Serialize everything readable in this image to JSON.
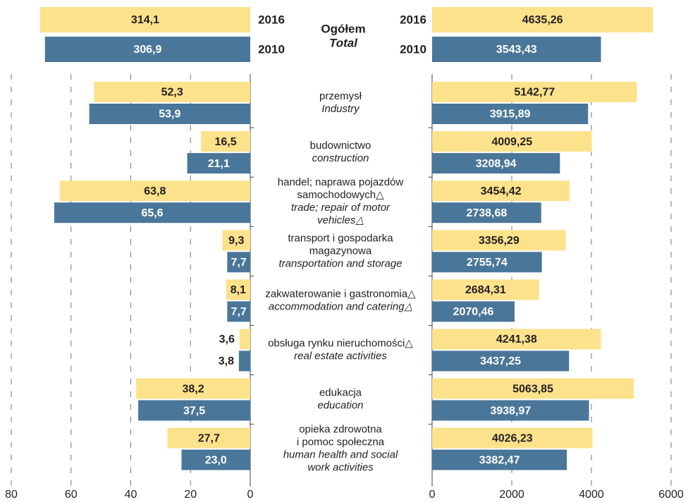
{
  "chart_data": {
    "type": "butterfly",
    "total_title": [
      "Ogółem",
      "Total"
    ],
    "categories": [
      {
        "pl": [
          "przemysł"
        ],
        "en": [
          "Industry"
        ]
      },
      {
        "pl": [
          "budownictwo"
        ],
        "en": [
          "construction"
        ]
      },
      {
        "pl": [
          "handel; naprawa pojazdów",
          "samochodowych△"
        ],
        "en": [
          "trade; repair of motor",
          "vehicles△"
        ]
      },
      {
        "pl": [
          "transport i gospodarka",
          "magazynowa"
        ],
        "en": [
          "transportation and storage"
        ]
      },
      {
        "pl": [
          "zakwaterowanie i gastronomia△"
        ],
        "en": [
          "accommodation and catering△"
        ]
      },
      {
        "pl": [
          "obsługa rynku nieruchomości△"
        ],
        "en": [
          "real estate activities"
        ]
      },
      {
        "pl": [
          "edukacja"
        ],
        "en": [
          "education"
        ]
      },
      {
        "pl": [
          "opieka zdrowotna",
          "i pomoc społeczna"
        ],
        "en": [
          "human health and social",
          "work activities"
        ]
      }
    ],
    "left": {
      "xlim": [
        80,
        0
      ],
      "xticks": [
        80,
        60,
        40,
        20,
        0
      ],
      "grid": true,
      "series": [
        {
          "name": "2016",
          "color": "#fde28c",
          "total": 314.1,
          "total_label": "314,1",
          "values": [
            52.3,
            16.5,
            63.8,
            9.3,
            8.1,
            3.6,
            38.2,
            27.7
          ],
          "value_labels": [
            "52,3",
            "16,5",
            "63,8",
            "9,3",
            "8,1",
            "3,6",
            "38,2",
            "27,7"
          ]
        },
        {
          "name": "2010",
          "color": "#4a7699",
          "total": 306.9,
          "total_label": "306,9",
          "values": [
            53.9,
            21.1,
            65.6,
            7.7,
            7.7,
            3.8,
            37.5,
            23.0
          ],
          "value_labels": [
            "53,9",
            "21,1",
            "65,6",
            "7,7",
            "7,7",
            "3,8",
            "37,5",
            "23,0"
          ]
        }
      ]
    },
    "right": {
      "xlim": [
        0,
        6000
      ],
      "xticks": [
        0,
        2000,
        4000,
        6000
      ],
      "grid": true,
      "series": [
        {
          "name": "2016",
          "color": "#fde28c",
          "total": 4635.26,
          "total_label": "4635,26",
          "values": [
            5142.77,
            4009.25,
            3454.42,
            3356.29,
            2684.31,
            4241.38,
            5063.85,
            4026.23
          ],
          "value_labels": [
            "5142,77",
            "4009,25",
            "3454,42",
            "3356,29",
            "2684,31",
            "4241,38",
            "5063,85",
            "4026,23"
          ]
        },
        {
          "name": "2010",
          "color": "#4a7699",
          "total": 3543.43,
          "total_label": "3543,43",
          "values": [
            3915.89,
            3208.94,
            2738.68,
            2755.74,
            2070.46,
            3437.25,
            3938.97,
            3382.47
          ],
          "value_labels": [
            "3915,89",
            "3208,94",
            "2738,68",
            "2755,74",
            "2070,46",
            "3437,25",
            "3938,97",
            "3382,47"
          ]
        }
      ]
    }
  }
}
